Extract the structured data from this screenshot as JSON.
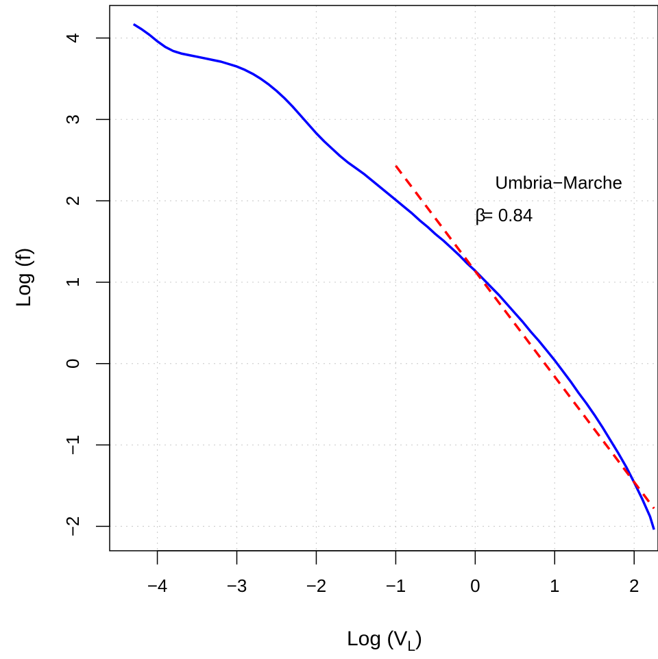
{
  "chart_data": {
    "type": "line",
    "xlabel_main": "Log (V",
    "xlabel_sub": "L",
    "xlabel_close": ")",
    "ylabel": "Log (f)",
    "xlim": [
      -4.6,
      2.3
    ],
    "ylim": [
      -2.3,
      4.4
    ],
    "x_ticks": [
      -4,
      -3,
      -2,
      -1,
      0,
      1,
      2
    ],
    "x_tick_labels": [
      "−4",
      "−3",
      "−2",
      "−1",
      "0",
      "1",
      "2"
    ],
    "y_ticks": [
      -2,
      -1,
      0,
      1,
      2,
      3,
      4
    ],
    "y_tick_labels": [
      "−2",
      "−1",
      "0",
      "1",
      "2",
      "3",
      "4"
    ],
    "grid": true,
    "annotation": {
      "title": "Umbria−Marche",
      "beta_symbol": "β",
      "beta_text": "= 0.84",
      "title_pos": [
        0.25,
        2.15
      ],
      "beta_pos": [
        0.0,
        1.75
      ]
    },
    "series": [
      {
        "style": "solid",
        "color": "#0000ff",
        "x": [
          -4.3,
          -4.2,
          -4.1,
          -4.0,
          -3.9,
          -3.8,
          -3.7,
          -3.6,
          -3.5,
          -3.4,
          -3.3,
          -3.2,
          -3.1,
          -3.0,
          -2.9,
          -2.8,
          -2.7,
          -2.6,
          -2.5,
          -2.4,
          -2.3,
          -2.2,
          -2.1,
          -2.0,
          -1.9,
          -1.8,
          -1.7,
          -1.6,
          -1.5,
          -1.4,
          -1.3,
          -1.2,
          -1.1,
          -1.0,
          -0.9,
          -0.8,
          -0.7,
          -0.6,
          -0.5,
          -0.4,
          -0.3,
          -0.2,
          -0.1,
          0.0,
          0.1,
          0.2,
          0.3,
          0.4,
          0.5,
          0.6,
          0.7,
          0.8,
          0.9,
          1.0,
          1.1,
          1.2,
          1.3,
          1.4,
          1.5,
          1.6,
          1.7,
          1.8,
          1.9,
          2.0,
          2.1,
          2.2,
          2.25
        ],
        "y": [
          4.17,
          4.11,
          4.04,
          3.96,
          3.89,
          3.84,
          3.81,
          3.79,
          3.77,
          3.75,
          3.73,
          3.71,
          3.68,
          3.65,
          3.61,
          3.56,
          3.5,
          3.43,
          3.35,
          3.26,
          3.16,
          3.05,
          2.94,
          2.83,
          2.73,
          2.64,
          2.55,
          2.47,
          2.4,
          2.33,
          2.25,
          2.17,
          2.09,
          2.01,
          1.93,
          1.85,
          1.76,
          1.68,
          1.59,
          1.51,
          1.42,
          1.33,
          1.23,
          1.14,
          1.04,
          0.94,
          0.84,
          0.73,
          0.62,
          0.51,
          0.39,
          0.28,
          0.16,
          0.04,
          -0.09,
          -0.22,
          -0.36,
          -0.49,
          -0.63,
          -0.78,
          -0.94,
          -1.1,
          -1.27,
          -1.46,
          -1.66,
          -1.88,
          -2.04
        ]
      },
      {
        "style": "dashed",
        "color": "#ff0000",
        "x": [
          -1.0,
          2.25
        ],
        "y": [
          2.43,
          -1.78
        ]
      }
    ]
  }
}
